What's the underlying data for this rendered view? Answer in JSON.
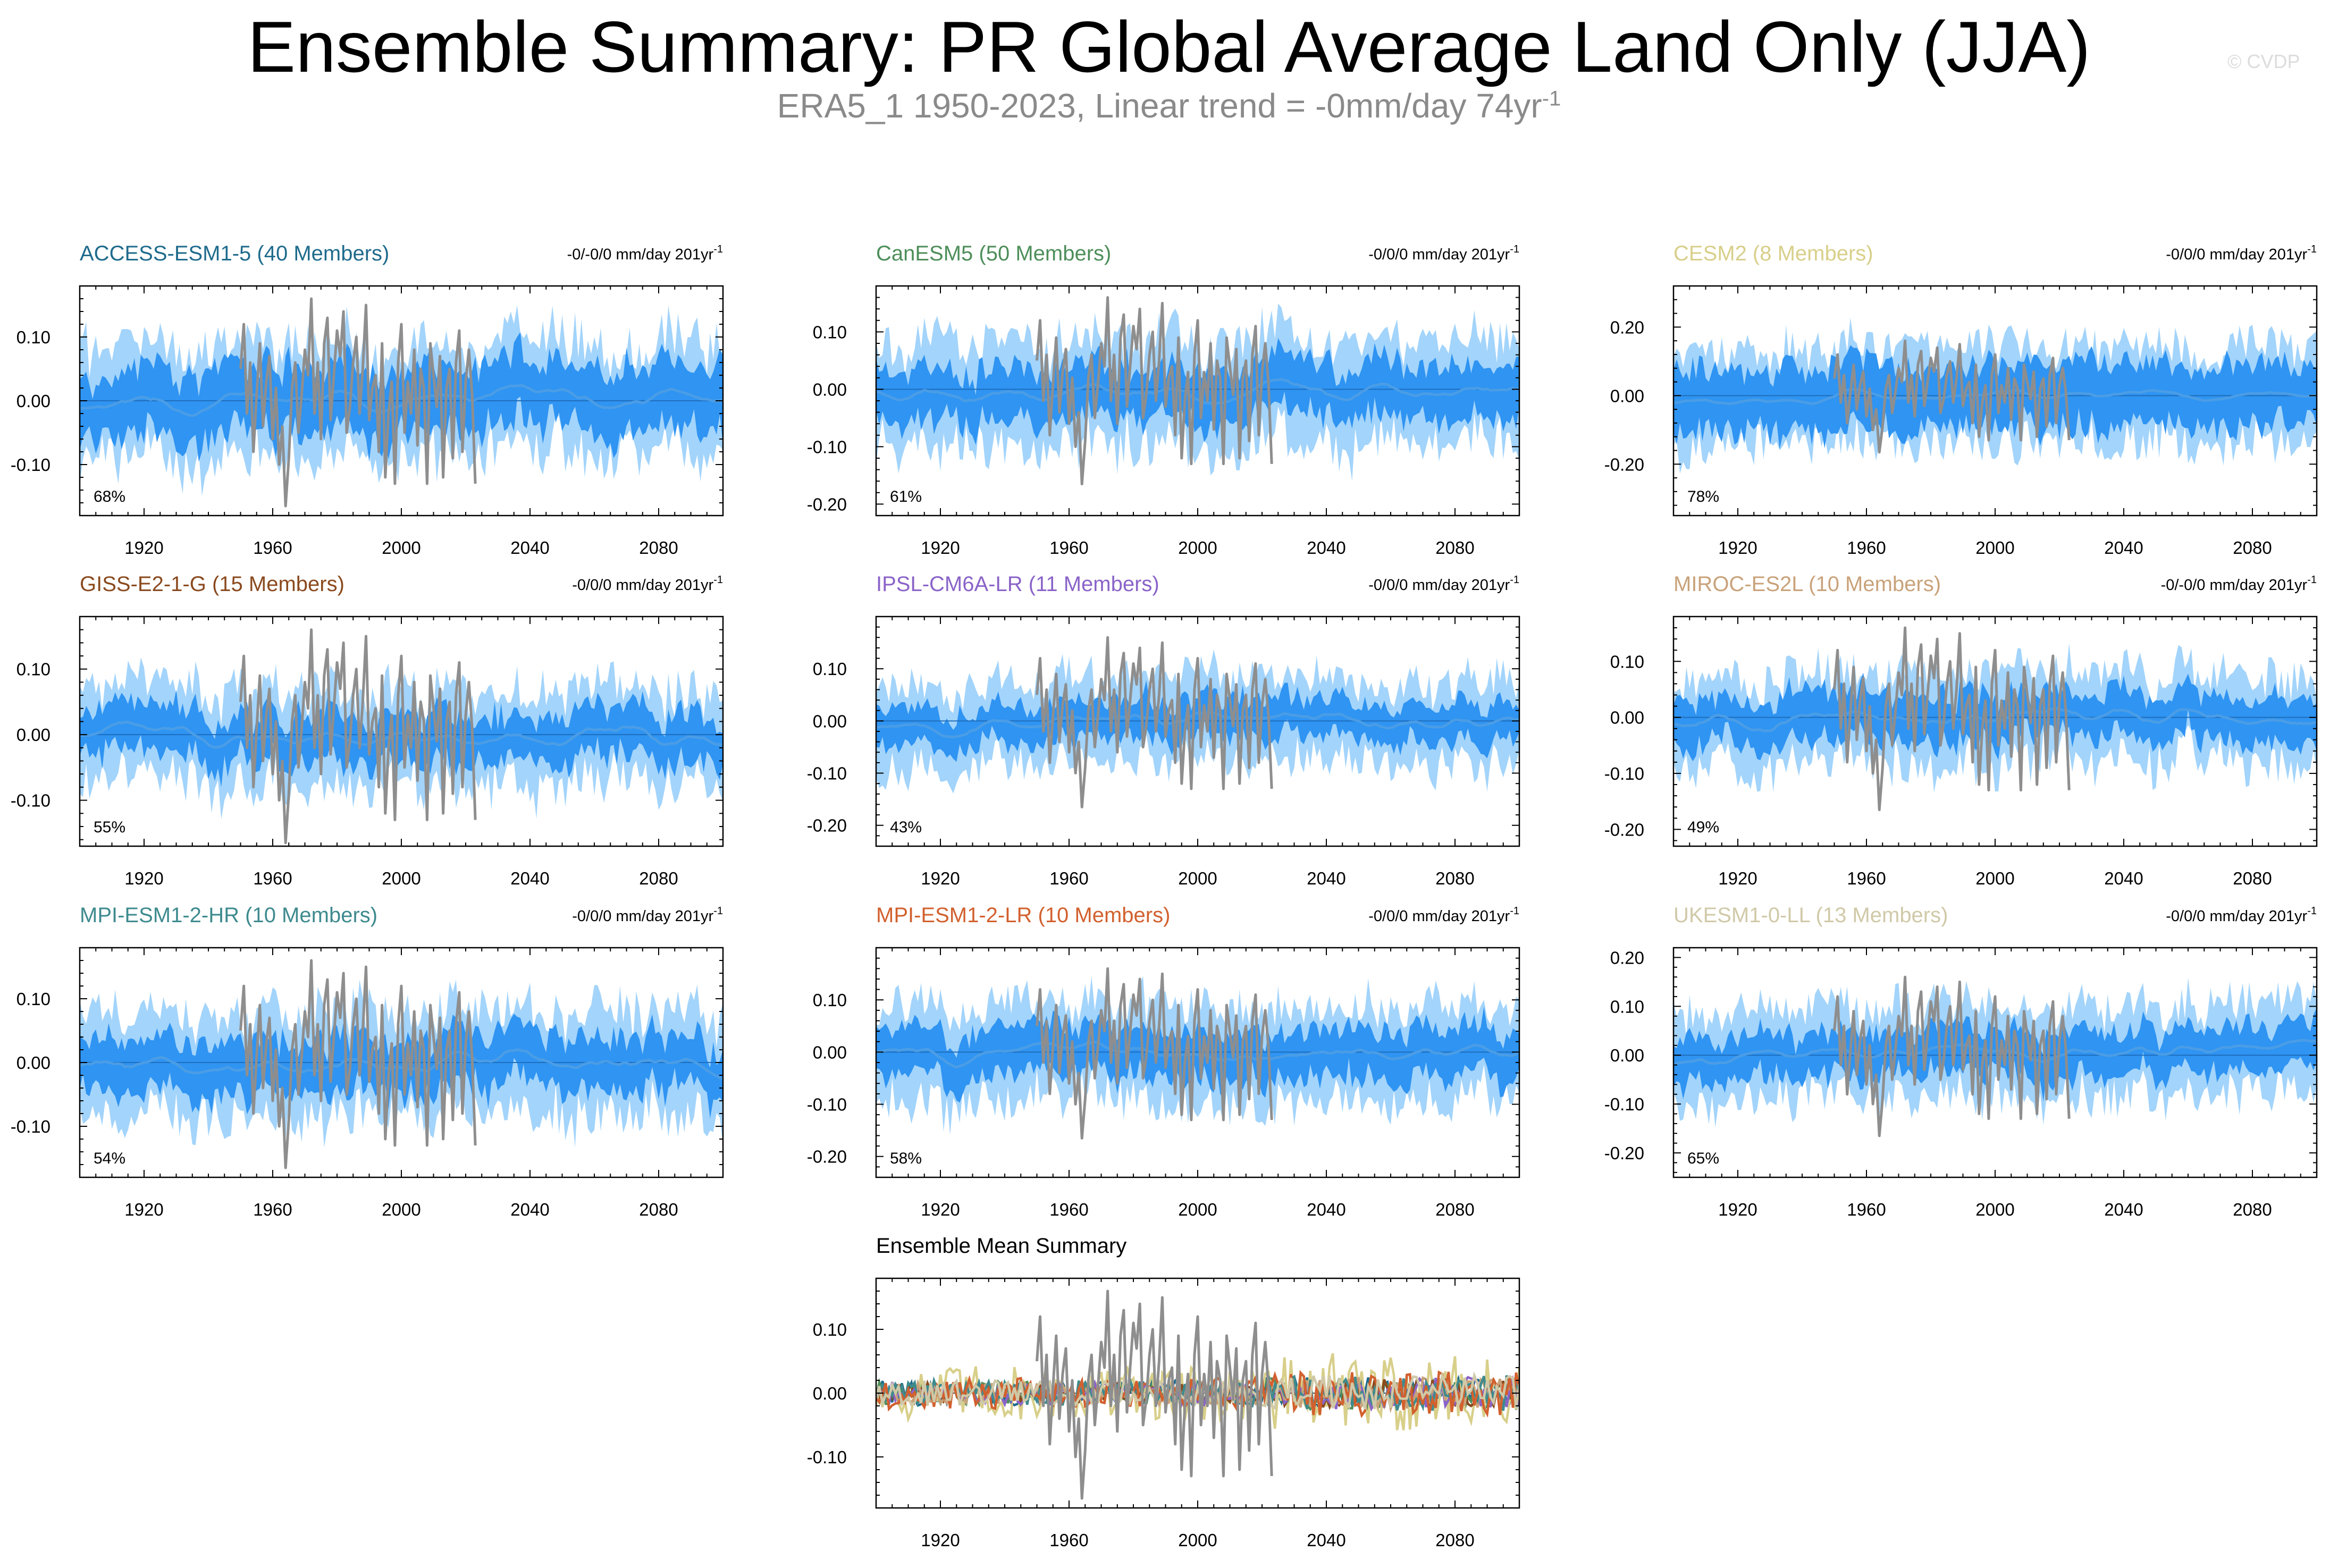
{
  "header": {
    "title": "Ensemble Summary: PR Global Average Land Only (JJA)",
    "subtitle_main": "ERA5_1 1950-2023, Linear trend = -0mm/day 74yr",
    "subtitle_sup": "-1",
    "copyright": "© CVDP"
  },
  "colors": {
    "band_outer": "#a3d4fb",
    "band_inner": "#2f94f2",
    "ensemble_mean_line": "#4a9de6",
    "observation_line": "#8e8e8e"
  },
  "chart_data": [
    {
      "type": "area",
      "title": "ACCESS-ESM1-5 (40 Members)",
      "title_color": "#1f6b8c",
      "trend_label": "-0/-0/0 mm/day 201yr",
      "trend_sup": "-1",
      "percent_label": "68%",
      "xlim": [
        1900,
        2100
      ],
      "xticks": [
        1920,
        1960,
        2000,
        2040,
        2080
      ],
      "ylim": [
        -0.18,
        0.18
      ],
      "yticks": [
        -0.1,
        0.0,
        0.1
      ],
      "ytick_labels": [
        "-0.10",
        "0.00",
        "0.10"
      ],
      "outer_halfwidth": 0.085,
      "inner_halfwidth": 0.05,
      "seed": 11
    },
    {
      "type": "area",
      "title": "CanESM5 (50 Members)",
      "title_color": "#4e8e5a",
      "trend_label": "-0/0/0 mm/day 201yr",
      "trend_sup": "-1",
      "percent_label": "61%",
      "xlim": [
        1900,
        2100
      ],
      "xticks": [
        1920,
        1960,
        2000,
        2040,
        2080
      ],
      "ylim": [
        -0.22,
        0.18
      ],
      "yticks": [
        -0.2,
        -0.1,
        0.0,
        0.1
      ],
      "ytick_labels": [
        "-0.20",
        "-0.10",
        "0.00",
        "0.10"
      ],
      "outer_halfwidth": 0.09,
      "inner_halfwidth": 0.045,
      "seed": 23
    },
    {
      "type": "area",
      "title": "CESM2 (8 Members)",
      "title_color": "#d8cf8a",
      "trend_label": "-0/0/0 mm/day 201yr",
      "trend_sup": "-1",
      "percent_label": "78%",
      "xlim": [
        1900,
        2100
      ],
      "xticks": [
        1920,
        1960,
        2000,
        2040,
        2080
      ],
      "ylim": [
        -0.35,
        0.32
      ],
      "yticks": [
        -0.2,
        0.0,
        0.2
      ],
      "ytick_labels": [
        "-0.20",
        "0.00",
        "0.20"
      ],
      "outer_halfwidth": 0.14,
      "inner_halfwidth": 0.09,
      "seed": 37
    },
    {
      "type": "area",
      "title": "GISS-E2-1-G (15 Members)",
      "title_color": "#8a4a1e",
      "trend_label": "-0/0/0 mm/day 201yr",
      "trend_sup": "-1",
      "percent_label": "55%",
      "xlim": [
        1900,
        2100
      ],
      "xticks": [
        1920,
        1960,
        2000,
        2040,
        2080
      ],
      "ylim": [
        -0.17,
        0.18
      ],
      "yticks": [
        -0.1,
        0.0,
        0.1
      ],
      "ytick_labels": [
        "-0.10",
        "0.00",
        "0.10"
      ],
      "outer_halfwidth": 0.07,
      "inner_halfwidth": 0.035,
      "seed": 41
    },
    {
      "type": "area",
      "title": "IPSL-CM6A-LR (11 Members)",
      "title_color": "#8a63c8",
      "trend_label": "-0/0/0 mm/day 201yr",
      "trend_sup": "-1",
      "percent_label": "43%",
      "xlim": [
        1900,
        2100
      ],
      "xticks": [
        1920,
        1960,
        2000,
        2040,
        2080
      ],
      "ylim": [
        -0.24,
        0.2
      ],
      "yticks": [
        -0.2,
        -0.1,
        0.0,
        0.1
      ],
      "ytick_labels": [
        "-0.20",
        "-0.10",
        "0.00",
        "0.10"
      ],
      "outer_halfwidth": 0.08,
      "inner_halfwidth": 0.035,
      "seed": 53
    },
    {
      "type": "area",
      "title": "MIROC-ES2L (10 Members)",
      "title_color": "#c9a27a",
      "trend_label": "-0/-0/0 mm/day 201yr",
      "trend_sup": "-1",
      "percent_label": "49%",
      "xlim": [
        1900,
        2100
      ],
      "xticks": [
        1920,
        1960,
        2000,
        2040,
        2080
      ],
      "ylim": [
        -0.23,
        0.18
      ],
      "yticks": [
        -0.2,
        -0.1,
        0.0,
        0.1
      ],
      "ytick_labels": [
        "-0.20",
        "-0.10",
        "0.00",
        "0.10"
      ],
      "outer_halfwidth": 0.08,
      "inner_halfwidth": 0.04,
      "seed": 67
    },
    {
      "type": "area",
      "title": "MPI-ESM1-2-HR (10 Members)",
      "title_color": "#3e8a8e",
      "trend_label": "-0/0/0 mm/day 201yr",
      "trend_sup": "-1",
      "percent_label": "54%",
      "xlim": [
        1900,
        2100
      ],
      "xticks": [
        1920,
        1960,
        2000,
        2040,
        2080
      ],
      "ylim": [
        -0.18,
        0.18
      ],
      "yticks": [
        -0.1,
        0.0,
        0.1
      ],
      "ytick_labels": [
        "-0.10",
        "0.00",
        "0.10"
      ],
      "outer_halfwidth": 0.08,
      "inner_halfwidth": 0.04,
      "seed": 79
    },
    {
      "type": "area",
      "title": "MPI-ESM1-2-LR (10 Members)",
      "title_color": "#d2602e",
      "trend_label": "-0/0/0 mm/day 201yr",
      "trend_sup": "-1",
      "percent_label": "58%",
      "xlim": [
        1900,
        2100
      ],
      "xticks": [
        1920,
        1960,
        2000,
        2040,
        2080
      ],
      "ylim": [
        -0.24,
        0.2
      ],
      "yticks": [
        -0.2,
        -0.1,
        0.0,
        0.1
      ],
      "ytick_labels": [
        "-0.20",
        "-0.10",
        "0.00",
        "0.10"
      ],
      "outer_halfwidth": 0.09,
      "inner_halfwidth": 0.045,
      "seed": 83
    },
    {
      "type": "area",
      "title": "UKESM1-0-LL (13 Members)",
      "title_color": "#d0c9a8",
      "trend_label": "-0/0/0 mm/day 201yr",
      "trend_sup": "-1",
      "percent_label": "65%",
      "xlim": [
        1900,
        2100
      ],
      "xticks": [
        1920,
        1960,
        2000,
        2040,
        2080
      ],
      "ylim": [
        -0.25,
        0.22
      ],
      "yticks": [
        -0.2,
        -0.1,
        0.0,
        0.1,
        0.2
      ],
      "ytick_labels": [
        "-0.20",
        "-0.10",
        "0.00",
        "0.10",
        "0.20"
      ],
      "outer_halfwidth": 0.09,
      "inner_halfwidth": 0.045,
      "seed": 97
    },
    {
      "type": "line",
      "title": "Ensemble Mean Summary",
      "title_color": "#000000",
      "xlim": [
        1900,
        2100
      ],
      "xticks": [
        1920,
        1960,
        2000,
        2040,
        2080
      ],
      "ylim": [
        -0.18,
        0.18
      ],
      "yticks": [
        -0.1,
        0.0,
        0.1
      ],
      "ytick_labels": [
        "-0.10",
        "0.00",
        "0.10"
      ],
      "seed": 101,
      "series": [
        {
          "name": "ACCESS-ESM1-5",
          "color": "#1f6b8c",
          "amplitude": 0.02
        },
        {
          "name": "CanESM5",
          "color": "#4e8e5a",
          "amplitude": 0.018
        },
        {
          "name": "CESM2",
          "color": "#d8cf8a",
          "amplitude": 0.045
        },
        {
          "name": "GISS-E2-1-G",
          "color": "#8a4a1e",
          "amplitude": 0.016
        },
        {
          "name": "IPSL-CM6A-LR",
          "color": "#8a63c8",
          "amplitude": 0.018
        },
        {
          "name": "MIROC-ES2L",
          "color": "#c9a27a",
          "amplitude": 0.018
        },
        {
          "name": "MPI-ESM1-2-HR",
          "color": "#3e8a8e",
          "amplitude": 0.02
        },
        {
          "name": "MPI-ESM1-2-LR",
          "color": "#d2602e",
          "amplitude": 0.025
        },
        {
          "name": "UKESM1-0-LL",
          "color": "#d0c9a8",
          "amplitude": 0.02
        }
      ]
    }
  ],
  "observations": {
    "name": "ERA5_1",
    "years": [
      1950,
      2023
    ],
    "values": [
      0.05,
      0.12,
      -0.02,
      0.06,
      -0.08,
      0.01,
      0.09,
      -0.04,
      0.03,
      0.07,
      -0.06,
      0.02,
      -0.1,
      -0.04,
      -0.165,
      -0.09,
      0.02,
      0.06,
      -0.05,
      0.01,
      0.08,
      0.04,
      0.16,
      -0.02,
      0.06,
      -0.06,
      0.09,
      0.13,
      -0.03,
      0.04,
      0.11,
      0.07,
      0.14,
      -0.05,
      -0.01,
      0.06,
      0.1,
      -0.02,
      0.05,
      0.15,
      -0.03,
      0.02,
      0.04,
      -0.08,
      0.09,
      -0.12,
      -0.02,
      0.03,
      -0.13,
      0.06,
      0.12,
      -0.05,
      0.03,
      -0.02,
      0.08,
      -0.07,
      0.05,
      0.02,
      -0.13,
      0.09,
      0.04,
      -0.01,
      0.07,
      -0.12,
      0.02,
      0.05,
      -0.09,
      0.06,
      0.11,
      -0.08,
      0.03,
      0.08,
      0.01,
      -0.13
    ]
  }
}
